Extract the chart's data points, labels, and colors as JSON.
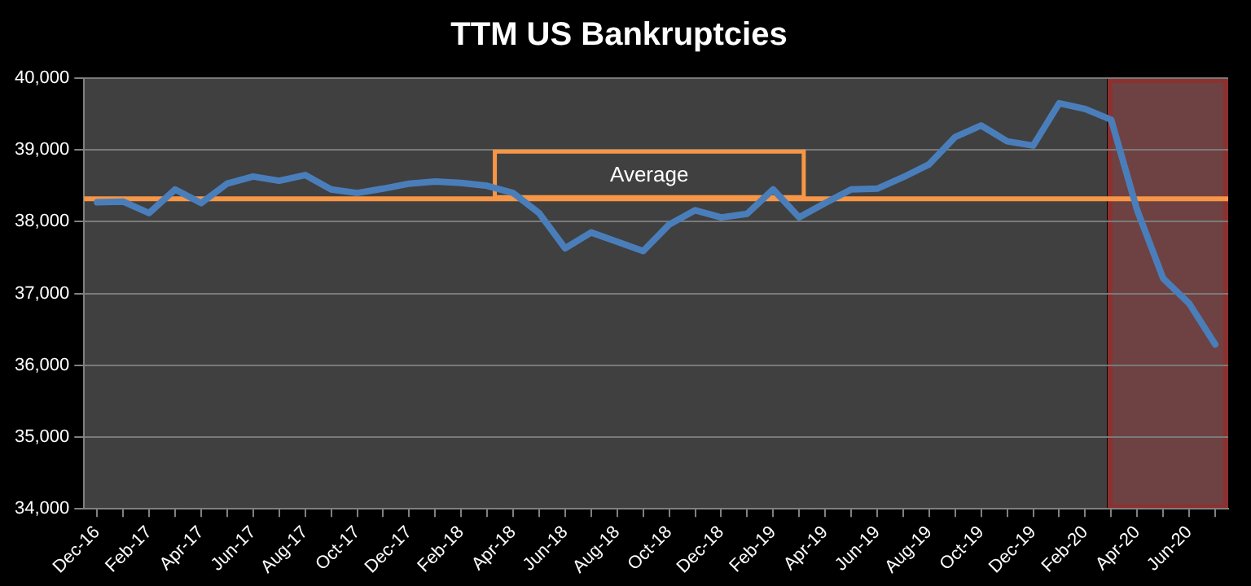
{
  "chart_data": {
    "type": "line",
    "title": "TTM US Bankruptcies",
    "categories": [
      "Dec-16",
      null,
      "Feb-17",
      null,
      "Apr-17",
      null,
      "Jun-17",
      null,
      "Aug-17",
      null,
      "Oct-17",
      null,
      "Dec-17",
      null,
      "Feb-18",
      null,
      "Apr-18",
      null,
      "Jun-18",
      null,
      "Aug-18",
      null,
      "Oct-18",
      null,
      "Dec-18",
      null,
      "Feb-19",
      null,
      "Apr-19",
      null,
      "Jun-19",
      null,
      "Aug-19",
      null,
      "Oct-19",
      null,
      "Dec-19",
      null,
      "Feb-20",
      null,
      "Apr-20",
      null,
      "Jun-20",
      null
    ],
    "series": [
      {
        "color": "#4a7ebb",
        "values": [
          38270,
          38280,
          38120,
          38450,
          38260,
          38530,
          38630,
          38570,
          38650,
          38450,
          38400,
          38460,
          38530,
          38560,
          38540,
          38500,
          38400,
          38120,
          37630,
          37850,
          37720,
          37590,
          37960,
          38160,
          38060,
          38110,
          38450,
          38060,
          38260,
          38450,
          38460,
          38620,
          38800,
          39180,
          39340,
          39120,
          39060,
          39650,
          39570,
          39420,
          38160,
          37210,
          36860,
          36290
        ]
      }
    ],
    "ylim": [
      34000,
      40000
    ],
    "yticks": [
      {
        "value": 34000,
        "label": "34,000"
      },
      {
        "value": 35000,
        "label": "35,000"
      },
      {
        "value": 36000,
        "label": "36,000"
      },
      {
        "value": 37000,
        "label": "37,000"
      },
      {
        "value": 38000,
        "label": "38,000"
      },
      {
        "value": 39000,
        "label": "39,000"
      },
      {
        "value": 40000,
        "label": "40,000"
      }
    ],
    "grid": "y",
    "legend": false,
    "marker": "none",
    "line_style": "solid",
    "ref_lines": [
      {
        "axis": "y",
        "value": 38320,
        "label": "Average",
        "color": "#f79646"
      }
    ]
  }
}
